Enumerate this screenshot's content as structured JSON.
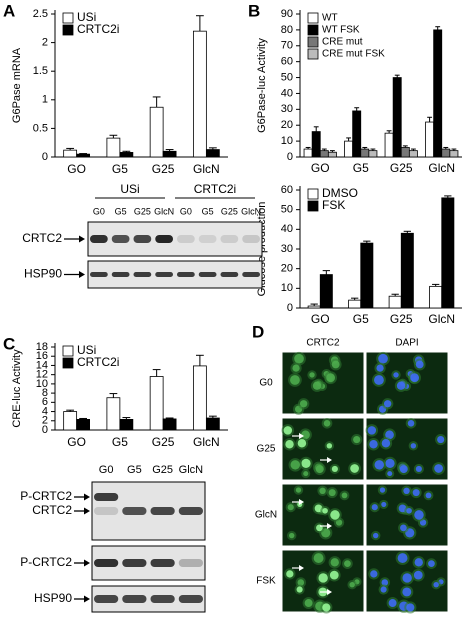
{
  "chart_data": [
    {
      "type": "bar",
      "panel": "A",
      "ylabel": "G6Pase mRNA",
      "categories": [
        "GO",
        "G5",
        "G25",
        "GlcN"
      ],
      "series": [
        {
          "name": "USi",
          "color": "#ffffff",
          "values": [
            0.12,
            0.33,
            0.87,
            2.2
          ],
          "errors": [
            0.03,
            0.05,
            0.18,
            0.27
          ]
        },
        {
          "name": "CRTC2i",
          "color": "#000000",
          "values": [
            0.05,
            0.08,
            0.1,
            0.13
          ],
          "errors": [
            0.01,
            0.02,
            0.03,
            0.03
          ]
        }
      ],
      "ylim": [
        0,
        2.5
      ],
      "yticks": [
        0,
        0.5,
        1,
        1.5,
        2,
        2.5
      ],
      "legend": "upper left"
    },
    {
      "type": "bar",
      "panel": "B",
      "ylabel": "G6Pase-luc Activity",
      "categories": [
        "GO",
        "G5",
        "G25",
        "GlcN"
      ],
      "series": [
        {
          "name": "WT",
          "color": "#ffffff",
          "values": [
            5,
            10,
            15,
            22
          ],
          "errors": [
            1,
            2,
            1.5,
            3
          ]
        },
        {
          "name": "WT FSK",
          "color": "#000000",
          "values": [
            16,
            29,
            50,
            80
          ],
          "errors": [
            3,
            2,
            1.5,
            2
          ]
        },
        {
          "name": "CRE mut",
          "color": "#777777",
          "values": [
            4,
            5,
            6,
            5
          ],
          "errors": [
            1,
            1,
            1,
            1
          ]
        },
        {
          "name": "CRE mut FSK",
          "color": "#bbbbbb",
          "values": [
            3,
            4,
            4,
            4
          ],
          "errors": [
            1,
            1,
            1,
            1
          ]
        }
      ],
      "ylim": [
        0,
        90
      ],
      "yticks": [
        0,
        10,
        20,
        30,
        40,
        50,
        60,
        70,
        80,
        90
      ],
      "legend": "upper left"
    },
    {
      "type": "bar",
      "ylabel": "Glucose production",
      "categories": [
        "GO",
        "G5",
        "G25",
        "GlcN"
      ],
      "series": [
        {
          "name": "DMSO",
          "color": "#ffffff",
          "values": [
            1,
            4,
            6,
            11
          ],
          "errors": [
            1,
            1,
            1,
            1
          ]
        },
        {
          "name": "FSK",
          "color": "#000000",
          "values": [
            17,
            33,
            38,
            56
          ],
          "errors": [
            2,
            1,
            1,
            1
          ]
        }
      ],
      "ylim": [
        0,
        60
      ],
      "yticks": [
        0,
        10,
        20,
        30,
        40,
        50,
        60
      ],
      "legend": "upper left"
    },
    {
      "type": "bar",
      "panel": "C",
      "ylabel": "CRE-luc Activity",
      "categories": [
        "GO",
        "G5",
        "G25",
        "GlcN"
      ],
      "series": [
        {
          "name": "USi",
          "color": "#ffffff",
          "values": [
            4,
            7,
            11.6,
            13.9
          ],
          "errors": [
            0.3,
            0.9,
            1.5,
            2.3
          ]
        },
        {
          "name": "CRTC2i",
          "color": "#000000",
          "values": [
            2.3,
            2.3,
            2.4,
            2.6
          ],
          "errors": [
            0.2,
            0.4,
            0.2,
            0.4
          ]
        }
      ],
      "ylim": [
        0,
        18
      ],
      "yticks": [
        0,
        2,
        4,
        6,
        8,
        10,
        12,
        14,
        16,
        18
      ],
      "legend": "upper left"
    }
  ],
  "blots": [
    {
      "groups": [
        "USi",
        "CRTC2i"
      ],
      "lanes": [
        "G0",
        "G5",
        "G25",
        "GlcN",
        "G0",
        "G5",
        "G25",
        "GlcN"
      ],
      "rows": [
        "CRTC2",
        "HSP90"
      ]
    },
    {
      "lanes": [
        "G0",
        "G5",
        "G25",
        "GlcN"
      ],
      "rows": [
        "P-CRTC2",
        "CRTC2",
        "P-CRTC2",
        "HSP90"
      ]
    }
  ],
  "microscopy": {
    "panel": "D",
    "columns": [
      "CRTC2",
      "DAPI"
    ],
    "rows": [
      "G0",
      "G25",
      "GlcN",
      "FSK"
    ]
  }
}
